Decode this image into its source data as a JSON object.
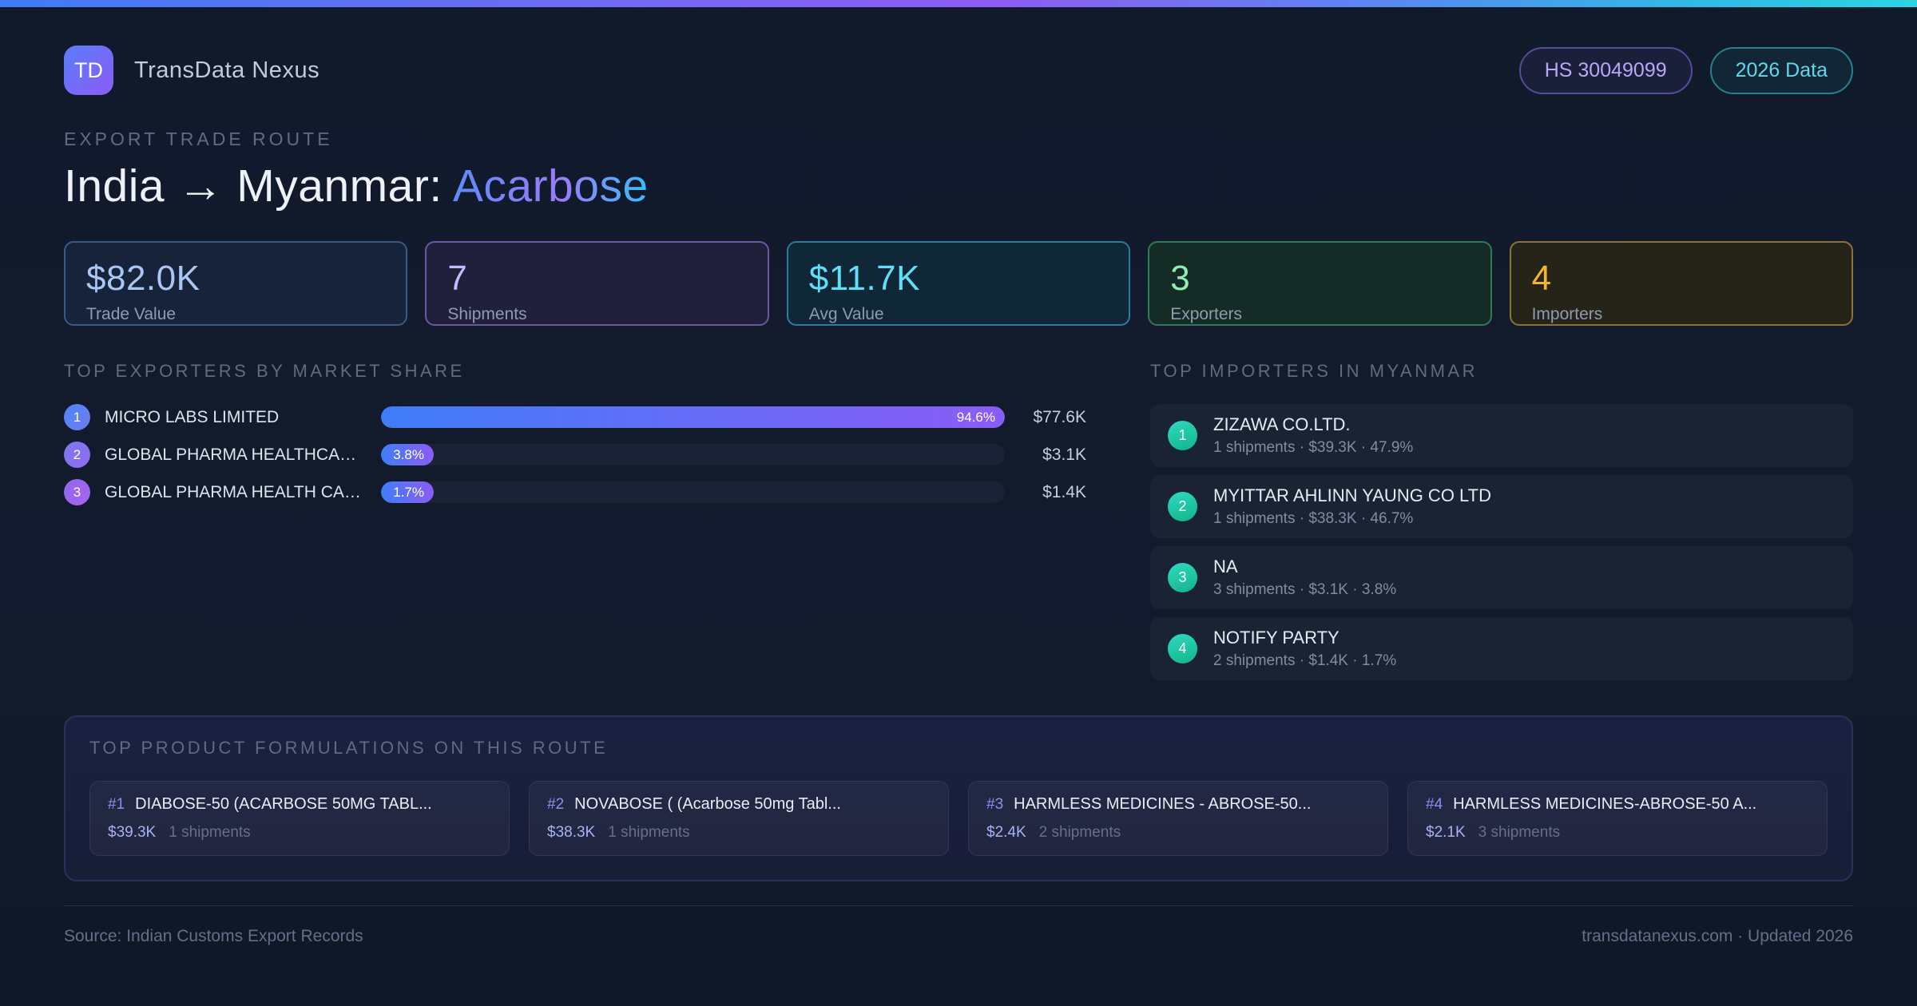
{
  "header": {
    "logo_text": "TD",
    "brand": "TransData Nexus",
    "hs_badge": "HS 30049099",
    "year_badge": "2026 Data"
  },
  "hero": {
    "eyebrow": "EXPORT TRADE ROUTE",
    "title_main": "India → Myanmar: ",
    "title_accent": "Acarbose"
  },
  "stats": [
    {
      "value": "$82.0K",
      "label": "Trade Value"
    },
    {
      "value": "7",
      "label": "Shipments"
    },
    {
      "value": "$11.7K",
      "label": "Avg Value"
    },
    {
      "value": "3",
      "label": "Exporters"
    },
    {
      "value": "4",
      "label": "Importers"
    }
  ],
  "exporters": {
    "heading": "TOP EXPORTERS BY MARKET SHARE",
    "rows": [
      {
        "rank": "1",
        "name": "MICRO LABS LIMITED",
        "share_pct": 94.6,
        "share_label": "94.6%",
        "value": "$77.6K"
      },
      {
        "rank": "2",
        "name": "GLOBAL PHARMA HEALTHCARE P...",
        "share_pct": 3.8,
        "share_label": "3.8%",
        "value": "$3.1K"
      },
      {
        "rank": "3",
        "name": "GLOBAL PHARMA HEALTH CARE ...",
        "share_pct": 1.7,
        "share_label": "1.7%",
        "value": "$1.4K"
      }
    ]
  },
  "importers": {
    "heading": "TOP IMPORTERS IN MYANMAR",
    "rows": [
      {
        "rank": "1",
        "name": "ZIZAWA CO.LTD.",
        "meta": "1 shipments · $39.3K · 47.9%"
      },
      {
        "rank": "2",
        "name": "MYITTAR AHLINN YAUNG CO LTD",
        "meta": "1 shipments · $38.3K · 46.7%"
      },
      {
        "rank": "3",
        "name": "NA",
        "meta": "3 shipments · $3.1K · 3.8%"
      },
      {
        "rank": "4",
        "name": "NOTIFY PARTY",
        "meta": "2 shipments · $1.4K · 1.7%"
      }
    ]
  },
  "products": {
    "heading": "TOP PRODUCT FORMULATIONS ON THIS ROUTE",
    "cards": [
      {
        "rank": "#1",
        "name": "DIABOSE-50 (ACARBOSE 50MG TABL...",
        "value": "$39.3K",
        "shipments": "1 shipments"
      },
      {
        "rank": "#2",
        "name": "NOVABOSE ( (Acarbose 50mg Tabl...",
        "value": "$38.3K",
        "shipments": "1 shipments"
      },
      {
        "rank": "#3",
        "name": "HARMLESS MEDICINES - ABROSE-50...",
        "value": "$2.4K",
        "shipments": "2 shipments"
      },
      {
        "rank": "#4",
        "name": "HARMLESS MEDICINES-ABROSE-50 A...",
        "value": "$2.1K",
        "shipments": "3 shipments"
      }
    ]
  },
  "footer": {
    "source": "Source: Indian Customs Export Records",
    "site": "transdatanexus.com · Updated 2026"
  },
  "colors": {
    "accent_blue": "#3f7df8",
    "accent_purple": "#8b5cf6",
    "accent_cyan": "#2ed3e3",
    "accent_green": "#8ef0b0",
    "accent_amber": "#f2b52b",
    "accent_teal": "#2fd9c2",
    "background": "#111a2b"
  }
}
